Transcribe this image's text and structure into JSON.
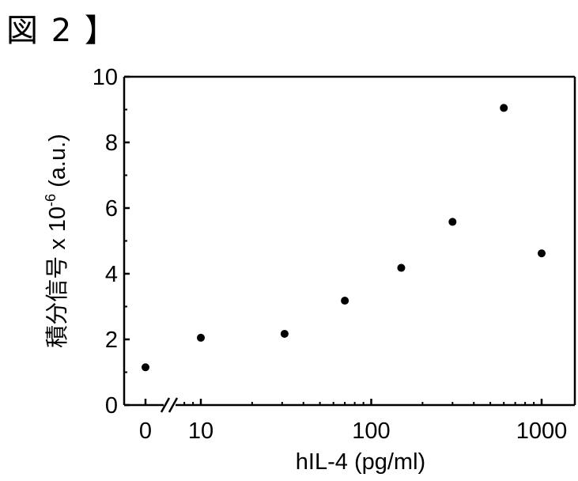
{
  "figure_label": "図 2 】",
  "chart_data": {
    "type": "scatter",
    "title": "",
    "xlabel": "hIL-4 (pg/ml)",
    "ylabel": "積分信号  x 10",
    "ylabel_exponent": "-6",
    "ylabel_unit": " (a.u.)",
    "x_scale": "log",
    "x_axis_break": true,
    "ylim": [
      0,
      10
    ],
    "xlim": [
      4.5,
      1400
    ],
    "y_ticks": [
      0,
      2,
      4,
      6,
      8,
      10
    ],
    "y_tick_labels": [
      "0",
      "2",
      "4",
      "6",
      "8",
      "10"
    ],
    "x_tick_labels": [
      "0",
      "10",
      "100",
      "1000"
    ],
    "x_tick_values": [
      0,
      10,
      100,
      1000
    ],
    "grid": false,
    "legend": "none",
    "marker_color": "#000000",
    "points": [
      {
        "x": 0,
        "y": 1.15
      },
      {
        "x": 10,
        "y": 2.05
      },
      {
        "x": 31,
        "y": 2.17
      },
      {
        "x": 70,
        "y": 3.18
      },
      {
        "x": 150,
        "y": 4.18
      },
      {
        "x": 300,
        "y": 5.58
      },
      {
        "x": 600,
        "y": 9.05
      },
      {
        "x": 1000,
        "y": 4.62
      }
    ]
  }
}
